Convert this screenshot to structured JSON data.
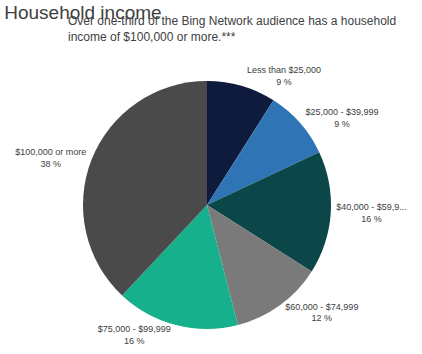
{
  "chart_data": {
    "type": "pie",
    "title": "Household income",
    "subtitle": "Over one-third of the Bing Network audience has a household income of $100,000 or more.***",
    "categories": [
      "Less than $25,000",
      "$25,000 - $39,999",
      "$40,000 - $59,9...",
      "$60,000 - $74,999",
      "$75,000 - $99,999",
      "$100,000 or more"
    ],
    "values": [
      9,
      9,
      16,
      12,
      16,
      38
    ],
    "value_labels": [
      "9 %",
      "9 %",
      "16 %",
      "12 %",
      "16 %",
      "38 %"
    ],
    "colors": [
      "#0e1b3d",
      "#2f75b5",
      "#0b4649",
      "#7a7a7a",
      "#17b08c",
      "#4a4a4a"
    ],
    "data_labels": true
  }
}
